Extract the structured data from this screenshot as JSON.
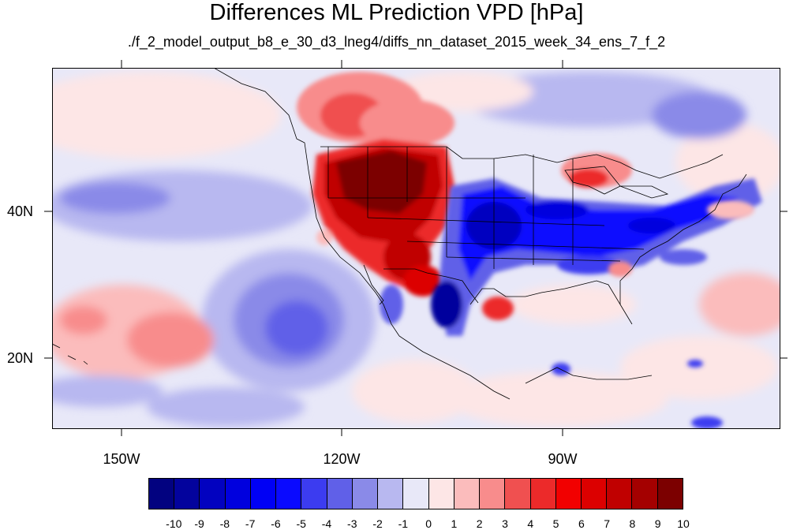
{
  "title": "Differences ML Prediction VPD [hPa]",
  "subtitle": "./f_2_model_output_b8_e_30_d3_lneg4/diffs_nn_dataset_2015_week_34_ens_7_f_2",
  "map": {
    "lat_ticks": [
      "40N",
      "20N"
    ],
    "lon_ticks": [
      "150W",
      "120W",
      "90W"
    ]
  },
  "colorbar": {
    "labels": [
      "-10",
      "-9",
      "-8",
      "-7",
      "-6",
      "-5",
      "-4",
      "-3",
      "-2",
      "-1",
      "0",
      "1",
      "2",
      "3",
      "4",
      "5",
      "6",
      "7",
      "8",
      "9",
      "10"
    ],
    "colors": [
      "#020280",
      "#03039d",
      "#0202c0",
      "#0000de",
      "#0000f5",
      "#0a0aff",
      "#3c3cf0",
      "#6060e8",
      "#8a8ae8",
      "#b8b8f0",
      "#e8e8f8",
      "#fde6e6",
      "#fbbcbc",
      "#f88c8c",
      "#f05050",
      "#ec2a2a",
      "#f20000",
      "#dc0000",
      "#c00000",
      "#a40000",
      "#7c0000"
    ]
  }
}
